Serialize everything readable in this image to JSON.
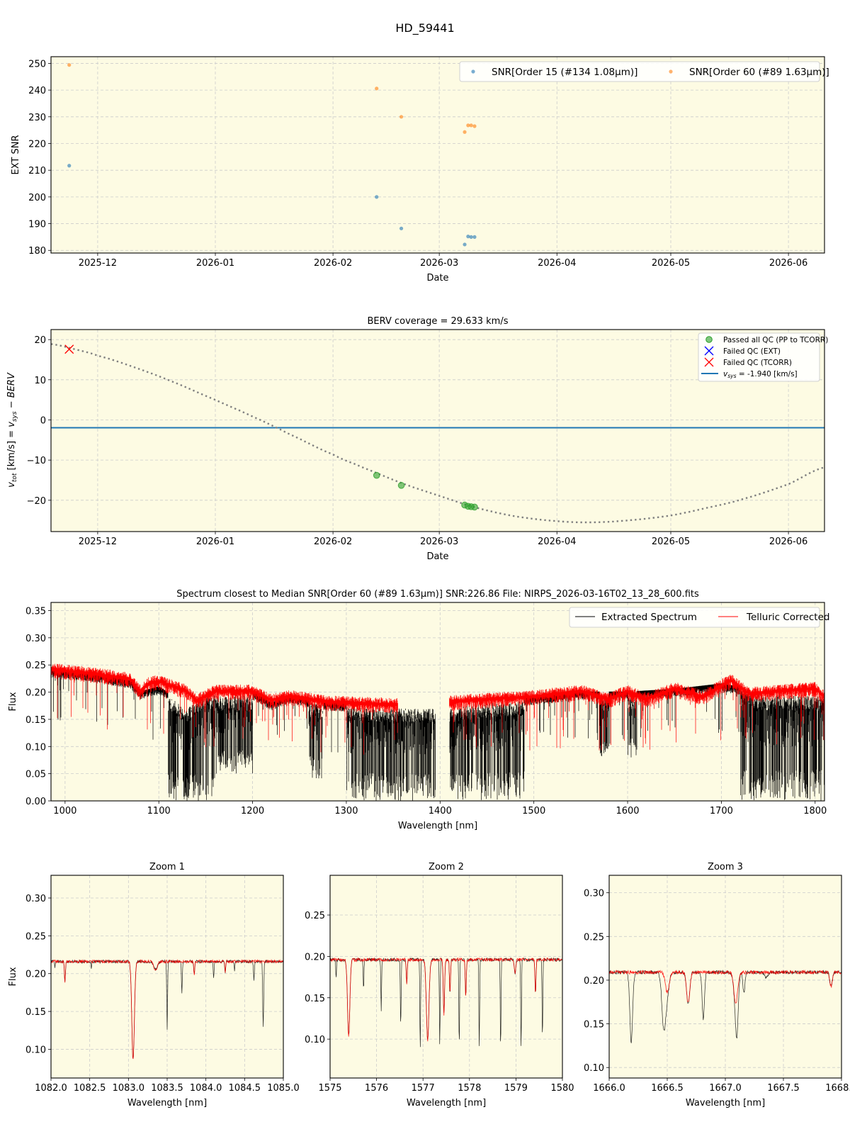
{
  "figure": {
    "suptitle": "HD_59441",
    "background": "#ffffff",
    "axes_facecolor": "#fdfbe3",
    "grid_color": "#cccccc"
  },
  "chart_data": [
    {
      "id": "snr",
      "type": "scatter",
      "title": "",
      "xlabel": "Date",
      "ylabel": "EXT SNR",
      "xticks": [
        "2025-12",
        "2026-01",
        "2026-02",
        "2026-03",
        "2026-04",
        "2026-05",
        "2026-06"
      ],
      "xtick_days": [
        0,
        31,
        62,
        90,
        121,
        151,
        182
      ],
      "xlim_days": [
        -12.3,
        191.5
      ],
      "ylim": [
        179,
        252.5
      ],
      "yticks": [
        180,
        190,
        200,
        210,
        220,
        230,
        240,
        250
      ],
      "grid": true,
      "legend_position": "upper right",
      "series": [
        {
          "name": "SNR[Order 15 (#134 1.08μm)]",
          "color": "#1f77b4",
          "points": [
            {
              "x": -7.5,
              "y": 211.7
            },
            {
              "x": 73.5,
              "y": 200.0
            },
            {
              "x": 80.0,
              "y": 188.2
            },
            {
              "x": 96.7,
              "y": 182.2
            },
            {
              "x": 97.6,
              "y": 185.2
            },
            {
              "x": 98.4,
              "y": 185.0
            },
            {
              "x": 99.3,
              "y": 185.0
            }
          ]
        },
        {
          "name": "SNR[Order 60 (#89 1.63μm)]",
          "color": "#ff7f0e",
          "points": [
            {
              "x": -7.5,
              "y": 249.4
            },
            {
              "x": 73.5,
              "y": 240.6
            },
            {
              "x": 80.0,
              "y": 230.0
            },
            {
              "x": 96.7,
              "y": 224.3
            },
            {
              "x": 97.6,
              "y": 226.8
            },
            {
              "x": 98.4,
              "y": 226.8
            },
            {
              "x": 99.3,
              "y": 226.5
            }
          ]
        }
      ]
    },
    {
      "id": "berv",
      "type": "scatter",
      "title": "BERV coverage = 29.633 km/s",
      "xlabel": "Date",
      "ylabel": "v_tot [km/s] = v_sys − BERV",
      "xticks": [
        "2025-12",
        "2026-01",
        "2026-02",
        "2026-03",
        "2026-04",
        "2026-05",
        "2026-06"
      ],
      "xtick_days": [
        0,
        31,
        62,
        90,
        121,
        151,
        182
      ],
      "xlim_days": [
        -12.3,
        191.5
      ],
      "ylim": [
        -27.8,
        22.5
      ],
      "yticks": [
        -20,
        -10,
        0,
        10,
        20
      ],
      "grid": true,
      "legend_position": "upper right",
      "vsys": -1.94,
      "berv_curve": {
        "style": "dotted",
        "color": "#808080",
        "x": [
          -12.3,
          -6,
          0,
          10,
          20,
          31,
          40,
          50,
          62,
          70,
          80,
          90,
          100,
          110,
          121,
          130,
          140,
          151,
          160,
          170,
          182,
          191.5
        ],
        "y": [
          18.9,
          17.6,
          16.0,
          13.0,
          9.4,
          5.0,
          1.2,
          -3.3,
          -8.6,
          -11.9,
          -15.7,
          -18.9,
          -21.9,
          -24.0,
          -25.2,
          -25.5,
          -25.0,
          -23.8,
          -22.0,
          -19.7,
          -16.0,
          -11.8
        ]
      },
      "series": [
        {
          "name": "Passed all QC (PP to TCORR)",
          "marker": "circle",
          "color": "#2ca02c",
          "points": [
            {
              "x": 73.5,
              "y": -13.8
            },
            {
              "x": 80.0,
              "y": -16.3
            },
            {
              "x": 96.7,
              "y": -21.2
            },
            {
              "x": 97.6,
              "y": -21.5
            },
            {
              "x": 98.4,
              "y": -21.6
            },
            {
              "x": 99.3,
              "y": -21.7
            }
          ]
        },
        {
          "name": "Failed QC (EXT)",
          "marker": "x",
          "color": "#0000ff",
          "points": []
        },
        {
          "name": "Failed QC (TCORR)",
          "marker": "x",
          "color": "#ff0000",
          "points": [
            {
              "x": -7.5,
              "y": 17.6
            }
          ]
        },
        {
          "name": "v_sys = -1.940 [km/s]",
          "marker": "line",
          "color": "#1f77b4",
          "points": []
        }
      ]
    },
    {
      "id": "spectrum",
      "type": "line",
      "title": "Spectrum closest to Median SNR[Order 60 (#89 1.63μm)]     SNR:226.86     File: NIRPS_2026-03-16T02_13_28_600.fits",
      "xlabel": "Wavelength [nm]",
      "ylabel": "Flux",
      "xlim": [
        985,
        1810
      ],
      "ylim": [
        0.0,
        0.365
      ],
      "xticks": [
        1000,
        1100,
        1200,
        1300,
        1400,
        1500,
        1600,
        1700,
        1800
      ],
      "yticks": [
        0.0,
        0.05,
        0.1,
        0.15,
        0.2,
        0.25,
        0.3,
        0.35
      ],
      "grid": true,
      "legend_position": "upper right",
      "series": [
        {
          "name": "Extracted Spectrum",
          "color": "#000000",
          "continuum": [
            [
              985,
              0.235
            ],
            [
              1030,
              0.228
            ],
            [
              1070,
              0.215
            ],
            [
              1080,
              0.195
            ],
            [
              1100,
              0.205
            ],
            [
              1130,
              0.17
            ],
            [
              1150,
              0.195
            ],
            [
              1200,
              0.195
            ],
            [
              1220,
              0.175
            ],
            [
              1240,
              0.188
            ],
            [
              1280,
              0.175
            ],
            [
              1350,
              0.17
            ],
            [
              1410,
              0.17
            ],
            [
              1450,
              0.18
            ],
            [
              1500,
              0.185
            ],
            [
              1550,
              0.195
            ],
            [
              1600,
              0.195
            ],
            [
              1650,
              0.2
            ],
            [
              1700,
              0.21
            ],
            [
              1750,
              0.195
            ],
            [
              1800,
              0.195
            ],
            [
              1810,
              0.19
            ]
          ],
          "absorption_bands": [
            [
              1110,
              1160,
              0.0
            ],
            [
              1160,
              1200,
              0.05
            ],
            [
              1260,
              1275,
              0.04
            ],
            [
              1300,
              1360,
              0.0
            ],
            [
              1360,
              1395,
              0.0
            ],
            [
              1400,
              1490,
              0.0
            ],
            [
              1570,
              1580,
              0.08
            ],
            [
              1600,
              1610,
              0.08
            ],
            [
              1720,
              1810,
              0.0
            ]
          ],
          "gap": [
            1395,
            1410
          ]
        },
        {
          "name": "Telluric Corrected",
          "color": "#ff0000",
          "continuum": [
            [
              985,
              0.24
            ],
            [
              1030,
              0.232
            ],
            [
              1070,
              0.222
            ],
            [
              1080,
              0.2
            ],
            [
              1090,
              0.215
            ],
            [
              1100,
              0.218
            ],
            [
              1130,
              0.2
            ],
            [
              1140,
              0.182
            ],
            [
              1160,
              0.2
            ],
            [
              1200,
              0.2
            ],
            [
              1220,
              0.183
            ],
            [
              1240,
              0.19
            ],
            [
              1280,
              0.18
            ],
            [
              1355,
              0.175
            ]
          ],
          "continuum2": [
            [
              1410,
              0.18
            ],
            [
              1450,
              0.185
            ],
            [
              1500,
              0.19
            ],
            [
              1550,
              0.2
            ],
            [
              1580,
              0.185
            ],
            [
              1600,
              0.2
            ],
            [
              1620,
              0.185
            ],
            [
              1650,
              0.205
            ],
            [
              1680,
              0.19
            ],
            [
              1710,
              0.22
            ],
            [
              1730,
              0.195
            ],
            [
              1760,
              0.2
            ],
            [
              1800,
              0.205
            ],
            [
              1810,
              0.19
            ]
          ],
          "gap": [
            1355,
            1410
          ]
        }
      ]
    },
    {
      "id": "zoom1",
      "type": "line",
      "title": "Zoom 1",
      "xlabel": "Wavelength [nm]",
      "ylabel": "Flux",
      "xlim": [
        1082.0,
        1085.0
      ],
      "ylim": [
        0.062,
        0.33
      ],
      "xticks": [
        1082.0,
        1082.5,
        1083.0,
        1083.5,
        1084.0,
        1084.5,
        1085.0
      ],
      "yticks": [
        0.1,
        0.15,
        0.2,
        0.25,
        0.3
      ],
      "continuum": 0.216,
      "lines_both": [
        [
          1082.18,
          0.19,
          0.012
        ],
        [
          1083.06,
          0.086,
          0.03
        ],
        [
          1083.35,
          0.205,
          0.04
        ],
        [
          1083.85,
          0.2,
          0.012
        ],
        [
          1084.25,
          0.2,
          0.01
        ]
      ],
      "lines_telluric": [
        [
          1082.05,
          0.208,
          0.008
        ],
        [
          1082.52,
          0.207,
          0.008
        ],
        [
          1083.5,
          0.127,
          0.01
        ],
        [
          1083.69,
          0.176,
          0.01
        ],
        [
          1084.1,
          0.194,
          0.01
        ],
        [
          1084.37,
          0.202,
          0.008
        ],
        [
          1084.62,
          0.19,
          0.01
        ],
        [
          1084.74,
          0.131,
          0.012
        ]
      ]
    },
    {
      "id": "zoom2",
      "type": "line",
      "title": "Zoom 2",
      "xlabel": "Wavelength [nm]",
      "ylabel": "",
      "xlim": [
        1575,
        1580
      ],
      "ylim": [
        0.053,
        0.298
      ],
      "xticks": [
        1575,
        1576,
        1577,
        1578,
        1579,
        1580
      ],
      "yticks": [
        0.1,
        0.15,
        0.2,
        0.25
      ],
      "continuum": 0.196,
      "lines_both": [
        [
          1575.4,
          0.104,
          0.045
        ],
        [
          1576.65,
          0.168,
          0.02
        ],
        [
          1577.1,
          0.098,
          0.05
        ],
        [
          1577.45,
          0.13,
          0.025
        ],
        [
          1577.58,
          0.155,
          0.02
        ],
        [
          1577.92,
          0.152,
          0.02
        ],
        [
          1578.98,
          0.18,
          0.03
        ],
        [
          1579.42,
          0.155,
          0.02
        ]
      ],
      "lines_telluric": [
        [
          1575.13,
          0.175,
          0.015
        ],
        [
          1575.72,
          0.16,
          0.015
        ],
        [
          1576.1,
          0.134,
          0.015
        ],
        [
          1576.52,
          0.113,
          0.015
        ],
        [
          1576.94,
          0.09,
          0.015
        ],
        [
          1577.36,
          0.093,
          0.015
        ],
        [
          1577.78,
          0.09,
          0.015
        ],
        [
          1578.21,
          0.09,
          0.015
        ],
        [
          1578.67,
          0.089,
          0.015
        ],
        [
          1579.11,
          0.091,
          0.015
        ],
        [
          1579.57,
          0.101,
          0.015
        ]
      ]
    },
    {
      "id": "zoom3",
      "type": "line",
      "title": "Zoom 3",
      "xlabel": "Wavelength [nm]",
      "ylabel": "",
      "xlim": [
        1666.0,
        1668.0
      ],
      "ylim": [
        0.088,
        0.32
      ],
      "xticks": [
        1666.0,
        1666.5,
        1667.0,
        1667.5,
        1668.0
      ],
      "yticks": [
        0.1,
        0.15,
        0.2,
        0.25,
        0.3
      ],
      "continuum": 0.209,
      "lines_both": [
        [
          1666.5,
          0.186,
          0.03
        ],
        [
          1666.68,
          0.174,
          0.025
        ],
        [
          1667.09,
          0.174,
          0.03
        ],
        [
          1667.91,
          0.193,
          0.02
        ]
      ],
      "lines_telluric": [
        [
          1666.19,
          0.129,
          0.022
        ],
        [
          1666.47,
          0.147,
          0.03
        ],
        [
          1666.81,
          0.156,
          0.018
        ],
        [
          1667.1,
          0.163,
          0.02
        ],
        [
          1667.16,
          0.185,
          0.015
        ],
        [
          1667.35,
          0.203,
          0.025
        ]
      ]
    }
  ],
  "legends": {
    "snr": [
      "SNR[Order 15 (#134 1.08μm)]",
      "SNR[Order 60 (#89 1.63μm)]"
    ],
    "berv": [
      "Passed all QC (PP to TCORR)",
      "Failed QC (EXT)",
      "Failed QC (TCORR)",
      "= -1.940 [km/s]"
    ],
    "spectrum": [
      "Extracted Spectrum",
      "Telluric Corrected"
    ]
  }
}
